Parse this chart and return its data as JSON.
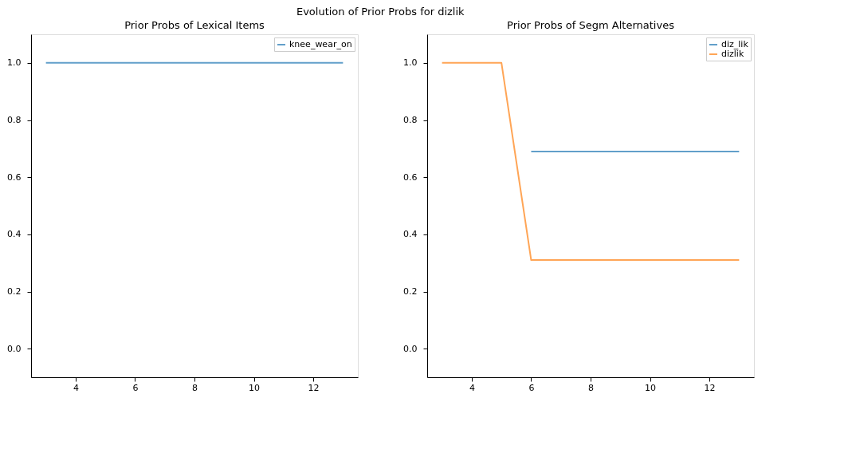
{
  "chart_data": [
    {
      "type": "line",
      "title": "Prior Probs of Lexical Items",
      "legend": "top right",
      "grid": false,
      "series": [
        {
          "name": "knee_wear_on",
          "color": "#629fca",
          "x": [
            3,
            4,
            5,
            6,
            7,
            8,
            9,
            10,
            11,
            12,
            13
          ],
          "values": [
            1,
            1,
            1,
            1,
            1,
            1,
            1,
            1,
            1,
            1,
            1
          ]
        }
      ],
      "xlim": [
        2.5,
        13.5
      ],
      "xticks": [
        4,
        6,
        8,
        10,
        12
      ],
      "ylim": [
        -0.1,
        1.1
      ],
      "yticks": [
        {
          "value": 0,
          "label": "0.0"
        },
        {
          "value": 0.2,
          "label": "0.2"
        },
        {
          "value": 0.4,
          "label": "0.4"
        },
        {
          "value": 0.6,
          "label": "0.6"
        },
        {
          "value": 0.8,
          "label": "0.8"
        },
        {
          "value": 1,
          "label": "1.0"
        }
      ],
      "annotations": [
        "Evolution of Prior Probs for dizlik"
      ]
    },
    {
      "type": "line",
      "title": "Prior Probs of Segm Alternatives",
      "legend": "top right",
      "grid": false,
      "series": [
        {
          "name": "diz_lik",
          "color": "#629fca",
          "x": [
            6,
            7,
            8,
            9,
            10,
            11,
            12,
            13
          ],
          "values": [
            0.69,
            0.69,
            0.69,
            0.69,
            0.69,
            0.69,
            0.69,
            0.69
          ]
        },
        {
          "name": "dizlik",
          "color": "#ffa556",
          "x": [
            3,
            4,
            5,
            6,
            7,
            8,
            9,
            10,
            11,
            12,
            13
          ],
          "values": [
            1,
            1,
            1,
            0.31,
            0.31,
            0.31,
            0.31,
            0.31,
            0.31,
            0.31,
            0.31
          ]
        }
      ],
      "xlim": [
        2.5,
        13.5
      ],
      "xticks": [
        4,
        6,
        8,
        10,
        12
      ],
      "ylim": [
        -0.1,
        1.1
      ],
      "yticks": [
        {
          "value": 0,
          "label": "0.0"
        },
        {
          "value": 0.2,
          "label": "0.2"
        },
        {
          "value": 0.4,
          "label": "0.4"
        },
        {
          "value": 0.6,
          "label": "0.6"
        },
        {
          "value": 0.8,
          "label": "0.8"
        },
        {
          "value": 1,
          "label": "1.0"
        }
      ]
    }
  ]
}
